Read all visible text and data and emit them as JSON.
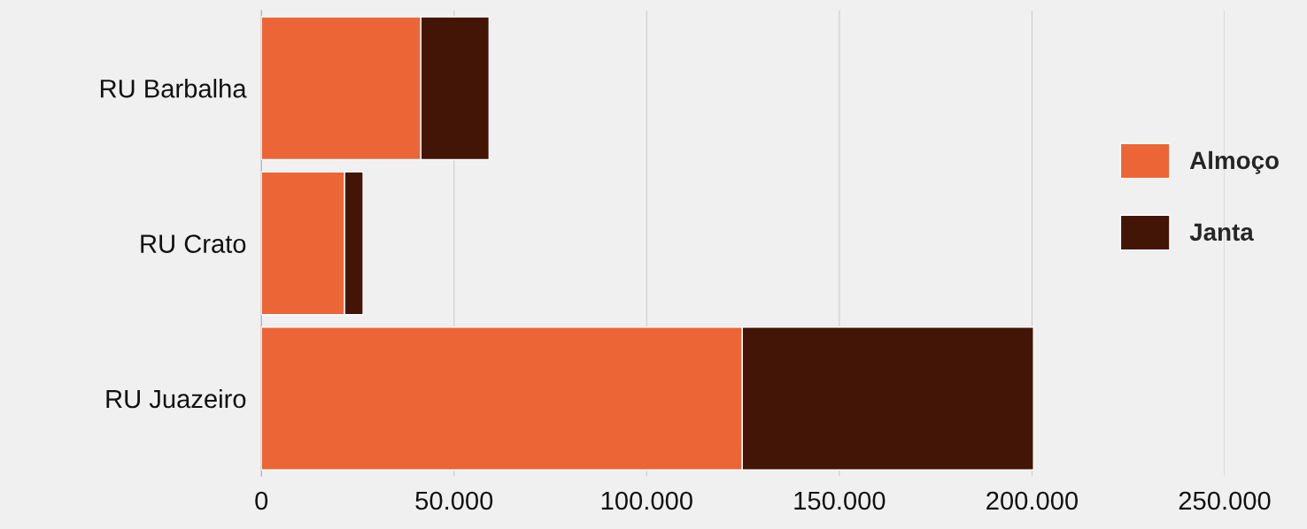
{
  "chart_data": {
    "type": "bar",
    "orientation": "horizontal",
    "stacked": true,
    "categories": [
      "RU Barbalha",
      "RU Crato",
      "RU Juazeiro"
    ],
    "series": [
      {
        "name": "Almoço",
        "color": "#ec6536",
        "values": [
          41400,
          21600,
          124800
        ]
      },
      {
        "name": "Janta",
        "color": "#431506",
        "values": [
          17700,
          4800,
          75600
        ]
      }
    ],
    "xlim": [
      0,
      250000
    ],
    "xticks": [
      0,
      {
        "value": 50000,
        "label": "50.000"
      },
      {
        "value": 100000,
        "label": "100.000"
      },
      {
        "value": 150000,
        "label": "150.000"
      },
      {
        "value": 200000,
        "label": "200.000"
      },
      {
        "value": 250000,
        "label": "250.000"
      }
    ],
    "grid": "x",
    "legend": "right"
  }
}
